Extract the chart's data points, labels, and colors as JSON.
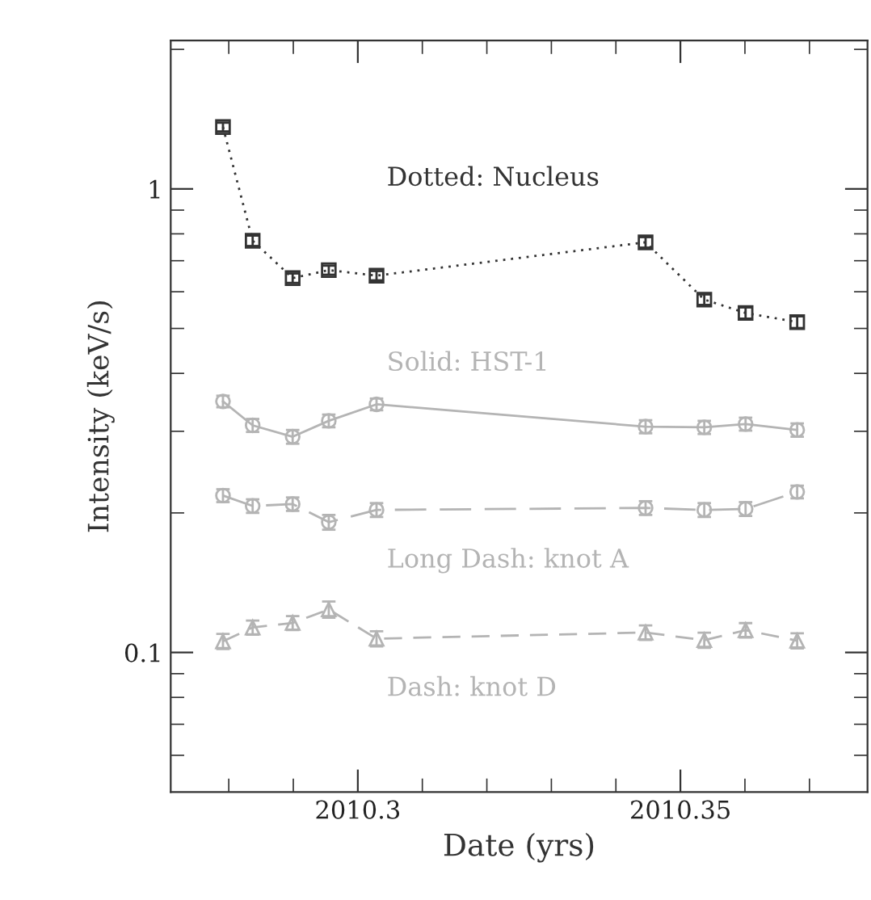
{
  "chart_data": {
    "type": "line",
    "xlabel": "Date (yrs)",
    "ylabel": "Intensity (keV/s)",
    "log": "y",
    "grid": false,
    "legend": false,
    "x": [
      2010.2791,
      2010.2837,
      2010.2899,
      2010.2955,
      2010.3029,
      2010.3446,
      2010.3537,
      2010.3601,
      2010.3681
    ],
    "xlim": [
      2010.271,
      2010.379
    ],
    "xticks": [
      {
        "value": 2010.28,
        "label": null
      },
      {
        "value": 2010.29,
        "label": null
      },
      {
        "value": 2010.3,
        "label": "2010.3"
      },
      {
        "value": 2010.31,
        "label": null
      },
      {
        "value": 2010.32,
        "label": null
      },
      {
        "value": 2010.33,
        "label": null
      },
      {
        "value": 2010.34,
        "label": null
      },
      {
        "value": 2010.35,
        "label": "2010.35"
      },
      {
        "value": 2010.36,
        "label": null
      },
      {
        "value": 2010.37,
        "label": null
      }
    ],
    "ylim": [
      0.05,
      2.09
    ],
    "yticks": [
      {
        "value": 0.06,
        "label": null
      },
      {
        "value": 0.07,
        "label": null
      },
      {
        "value": 0.08,
        "label": null
      },
      {
        "value": 0.09,
        "label": null
      },
      {
        "value": 0.1,
        "label": "0.1"
      },
      {
        "value": 0.2,
        "label": null
      },
      {
        "value": 0.3,
        "label": null
      },
      {
        "value": 0.4,
        "label": null
      },
      {
        "value": 0.5,
        "label": null
      },
      {
        "value": 0.6,
        "label": null
      },
      {
        "value": 0.7,
        "label": null
      },
      {
        "value": 0.8,
        "label": null
      },
      {
        "value": 0.9,
        "label": null
      },
      {
        "value": 1,
        "label": "1"
      },
      {
        "value": 2,
        "label": null
      }
    ],
    "series": [
      {
        "name": "Dotted: Nucleus",
        "color": "#333333",
        "marker": "square",
        "line_style": "dotted",
        "values": [
          1.36,
          0.773,
          0.642,
          0.668,
          0.65,
          0.767,
          0.577,
          0.54,
          0.516
        ],
        "errors": [
          0.03,
          0.02,
          0.015,
          0.015,
          0.015,
          0.02,
          0.015,
          0.015,
          0.015
        ]
      },
      {
        "name": "Solid: HST-1",
        "color": "#b4b4b4",
        "marker": "circle",
        "line_style": "solid",
        "values": [
          0.348,
          0.309,
          0.292,
          0.316,
          0.343,
          0.307,
          0.306,
          0.311,
          0.302
        ],
        "errors": [
          0.01,
          0.01,
          0.01,
          0.01,
          0.01,
          0.01,
          0.01,
          0.01,
          0.01
        ]
      },
      {
        "name": "Long Dash: knot A",
        "color": "#b4b4b4",
        "marker": "circle",
        "line_style": "dashed",
        "values": [
          0.218,
          0.207,
          0.209,
          0.191,
          0.203,
          0.205,
          0.203,
          0.204,
          0.222
        ],
        "errors": [
          0.007,
          0.007,
          0.007,
          0.007,
          0.007,
          0.007,
          0.007,
          0.007,
          0.007
        ]
      },
      {
        "name": "Dash: knot D",
        "color": "#b4b4b4",
        "marker": "triangle",
        "line_style": "dashed",
        "values": [
          0.1057,
          0.1132,
          0.1158,
          0.1238,
          0.1071,
          0.1104,
          0.1063,
          0.1117,
          0.106
        ],
        "errors": [
          0.004,
          0.004,
          0.004,
          0.005,
          0.004,
          0.004,
          0.004,
          0.004,
          0.004
        ]
      }
    ]
  }
}
